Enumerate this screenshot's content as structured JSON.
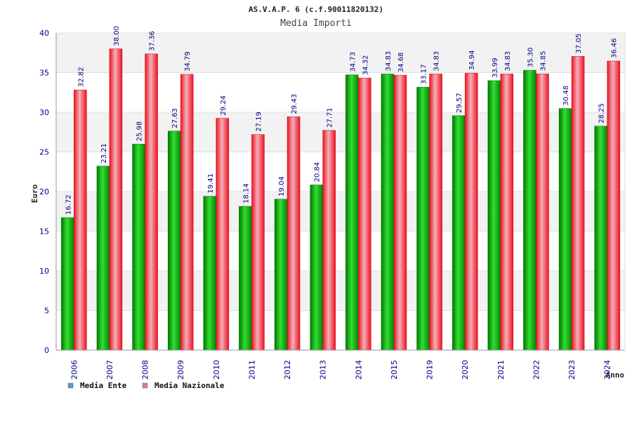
{
  "chart_data": {
    "type": "bar",
    "title": "AS.V.A.P. 6 (c.f.90011820132)",
    "subtitle": "Media Importi",
    "xlabel": "Anno",
    "ylabel": "Euro",
    "ylim": [
      0,
      40
    ],
    "yticks": [
      0,
      5,
      10,
      15,
      20,
      25,
      30,
      35,
      40
    ],
    "grid": true,
    "legend_position": "bottom-left",
    "categories": [
      "2006",
      "2007",
      "2008",
      "2009",
      "2010",
      "2011",
      "2012",
      "2013",
      "2014",
      "2015",
      "2019",
      "2020",
      "2021",
      "2022",
      "2023",
      "2024"
    ],
    "series": [
      {
        "name": "Media Ente",
        "color": "#00aa00",
        "legend_color": "#5599dd",
        "values": [
          16.72,
          23.21,
          25.98,
          27.63,
          19.41,
          18.14,
          19.04,
          20.84,
          34.73,
          34.83,
          33.17,
          29.57,
          33.99,
          35.3,
          30.48,
          28.25
        ],
        "labels": [
          "16.72",
          "23.21",
          "25.98",
          "27.63",
          "19.41",
          "18.14",
          "19.04",
          "20.84",
          "34.73",
          "34.83",
          "33.17",
          "29.57",
          "33.99",
          "35.30",
          "30.48",
          "28.25"
        ]
      },
      {
        "name": "Media Nazionale",
        "color": "#ee2222",
        "legend_color": "#dd77aa",
        "values": [
          32.82,
          38.0,
          37.36,
          34.79,
          29.24,
          27.19,
          29.43,
          27.71,
          34.32,
          34.68,
          34.83,
          34.94,
          34.83,
          34.85,
          37.05,
          36.46
        ],
        "labels": [
          "32.82",
          "38.00",
          "37.36",
          "34.79",
          "29.24",
          "27.19",
          "29.43",
          "27.71",
          "34.32",
          "34.68",
          "34.83",
          "34.94",
          "34.83",
          "34.85",
          "37.05",
          "36.46"
        ]
      }
    ]
  }
}
